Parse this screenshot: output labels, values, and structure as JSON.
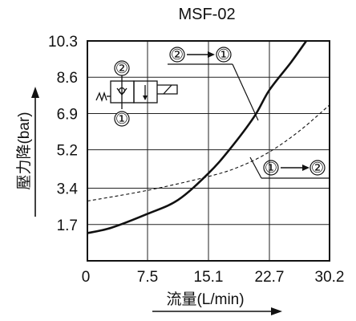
{
  "chart_data": {
    "type": "line",
    "title": "MSF-02",
    "xlabel": "流量(L/min)",
    "ylabel": "壓力降(bar)",
    "x_ticks": [
      "0",
      "7.5",
      "15.1",
      "22.7",
      "30.2"
    ],
    "y_ticks": [
      "10.3",
      "8.6",
      "6.9",
      "5.2",
      "3.4",
      "1.7"
    ],
    "xlim": [
      0,
      30.2
    ],
    "ylim": [
      0,
      10.3
    ],
    "grid": true,
    "series": [
      {
        "name": "②→①",
        "style": "solid",
        "x": [
          0,
          3.0,
          7.5,
          11.3,
          15.1,
          17.7,
          20.8,
          22.7,
          25.4,
          27.3
        ],
        "y": [
          1.3,
          1.55,
          2.2,
          2.85,
          4.1,
          5.2,
          6.75,
          8.0,
          9.3,
          10.3
        ]
      },
      {
        "name": "①→②",
        "style": "dashed",
        "x": [
          0,
          7.5,
          15.1,
          18.9,
          22.7,
          26.5,
          30.2
        ],
        "y": [
          2.8,
          3.3,
          3.95,
          4.4,
          5.1,
          6.1,
          7.3
        ]
      }
    ],
    "annotations": [
      {
        "from": "②",
        "to": "①"
      },
      {
        "from": "①",
        "to": "②"
      }
    ],
    "symbol_ports": [
      "②",
      "①"
    ]
  }
}
